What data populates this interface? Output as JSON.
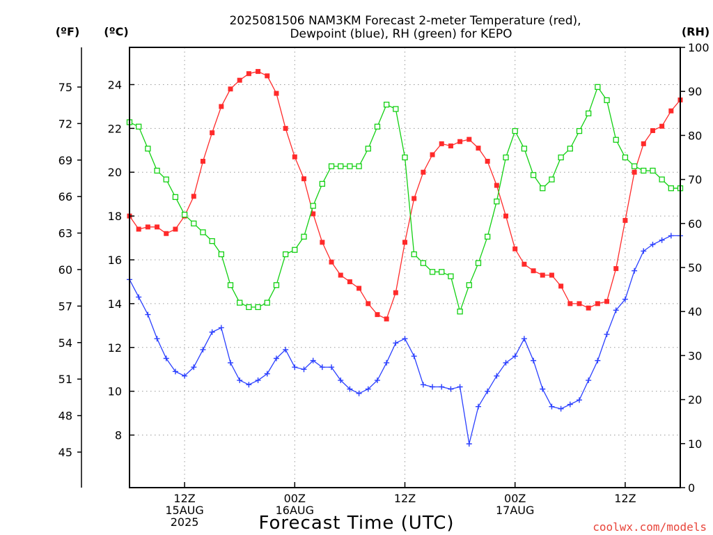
{
  "title": {
    "line1": "2025081506 NAM3KM Forecast 2-meter Temperature (red),",
    "line2": "Dewpoint (blue), RH (green) for KEPO"
  },
  "units": {
    "fahrenheit": "(ºF)",
    "celsius": "(ºC)",
    "rh": "(RH)"
  },
  "credit": "coolwx.com/models",
  "colors": {
    "temperature": "#ff2a2a",
    "dewpoint": "#2a3fff",
    "rh": "#12d012",
    "credit": "#e8443a"
  },
  "chart_data": {
    "type": "line",
    "xlabel": "Forecast Time (UTC)",
    "x_hours_from_run": [
      0,
      60
    ],
    "x_ticks": [
      {
        "hour": 6,
        "lines": [
          "12Z",
          "15AUG",
          "2025"
        ]
      },
      {
        "hour": 18,
        "lines": [
          "00Z",
          "16AUG"
        ]
      },
      {
        "hour": 30,
        "lines": [
          "12Z"
        ]
      },
      {
        "hour": 42,
        "lines": [
          "00Z",
          "17AUG"
        ]
      },
      {
        "hour": 54,
        "lines": [
          "12Z"
        ]
      }
    ],
    "y_celsius": {
      "range": [
        5.6,
        25.7
      ],
      "ticks": [
        "8",
        "10",
        "12",
        "14",
        "16",
        "18",
        "20",
        "22",
        "24"
      ]
    },
    "y_fahrenheit": {
      "ticks": [
        "45",
        "48",
        "51",
        "54",
        "57",
        "60",
        "63",
        "66",
        "69",
        "72",
        "75"
      ]
    },
    "y_rh": {
      "range": [
        0,
        100
      ],
      "ticks": [
        "0",
        "10",
        "20",
        "30",
        "40",
        "50",
        "60",
        "70",
        "80",
        "90",
        "100"
      ]
    },
    "grid": true,
    "series": [
      {
        "name": "Temperature",
        "axis": "celsius",
        "color": "#ff2a2a",
        "marker": "filled-square",
        "x": [
          0,
          1,
          2,
          3,
          4,
          5,
          6,
          7,
          8,
          9,
          10,
          11,
          12,
          13,
          14,
          15,
          16,
          17,
          18,
          19,
          20,
          21,
          22,
          23,
          24,
          25,
          26,
          27,
          28,
          29,
          30,
          31,
          32,
          33,
          34,
          35,
          36,
          37,
          38,
          39,
          40,
          41,
          42,
          43,
          44,
          45,
          46,
          47,
          48,
          49,
          50,
          51,
          52,
          53,
          54,
          55,
          56,
          57,
          58,
          59,
          60
        ],
        "values": [
          18.0,
          17.4,
          17.5,
          17.5,
          17.2,
          17.4,
          18.0,
          18.9,
          20.5,
          21.8,
          23.0,
          23.8,
          24.2,
          24.5,
          24.6,
          24.4,
          23.6,
          22.0,
          20.7,
          19.7,
          18.1,
          16.8,
          15.9,
          15.3,
          15.0,
          14.7,
          14.0,
          13.5,
          13.3,
          14.5,
          16.8,
          18.8,
          20.0,
          20.8,
          21.3,
          21.2,
          21.4,
          21.5,
          21.1,
          20.5,
          19.4,
          18.0,
          16.5,
          15.8,
          15.5,
          15.3,
          15.3,
          14.8,
          14.0,
          14.0,
          13.8,
          14.0,
          14.1,
          15.6,
          17.8,
          20.0,
          21.3,
          21.9,
          22.1,
          22.8,
          23.3
        ]
      },
      {
        "name": "Dewpoint",
        "axis": "celsius",
        "color": "#2a3fff",
        "marker": "plus",
        "x": [
          0,
          1,
          2,
          3,
          4,
          5,
          6,
          7,
          8,
          9,
          10,
          11,
          12,
          13,
          14,
          15,
          16,
          17,
          18,
          19,
          20,
          21,
          22,
          23,
          24,
          25,
          26,
          27,
          28,
          29,
          30,
          31,
          32,
          33,
          34,
          35,
          36,
          37,
          38,
          39,
          40,
          41,
          42,
          43,
          44,
          45,
          46,
          47,
          48,
          49,
          50,
          51,
          52,
          53,
          54,
          55,
          56,
          57,
          58,
          59,
          60
        ],
        "values": [
          15.1,
          14.3,
          13.5,
          12.4,
          11.5,
          10.9,
          10.7,
          11.1,
          11.9,
          12.7,
          12.9,
          11.3,
          10.5,
          10.3,
          10.5,
          10.8,
          11.5,
          11.9,
          11.1,
          11.0,
          11.4,
          11.1,
          11.1,
          10.5,
          10.1,
          9.9,
          10.1,
          10.5,
          11.3,
          12.2,
          12.4,
          11.6,
          10.3,
          10.2,
          10.2,
          10.1,
          10.2,
          7.6,
          9.3,
          10.0,
          10.7,
          11.3,
          11.6,
          12.4,
          11.4,
          10.1,
          9.3,
          9.2,
          9.4,
          9.6,
          10.5,
          11.4,
          12.6,
          13.7,
          14.2,
          15.5,
          16.4,
          16.7,
          16.9,
          17.1,
          17.1
        ]
      },
      {
        "name": "RH",
        "axis": "rh",
        "color": "#12d012",
        "marker": "open-square",
        "x": [
          0,
          1,
          2,
          3,
          4,
          5,
          6,
          7,
          8,
          9,
          10,
          11,
          12,
          13,
          14,
          15,
          16,
          17,
          18,
          19,
          20,
          21,
          22,
          23,
          24,
          25,
          26,
          27,
          28,
          29,
          30,
          31,
          32,
          33,
          34,
          35,
          36,
          37,
          38,
          39,
          40,
          41,
          42,
          43,
          44,
          45,
          46,
          47,
          48,
          49,
          50,
          51,
          52,
          53,
          54,
          55,
          56,
          57,
          58,
          59,
          60
        ],
        "values": [
          83,
          82,
          77,
          72,
          70,
          66,
          62,
          60,
          58,
          56,
          53,
          46,
          42,
          41,
          41,
          42,
          46,
          53,
          54,
          57,
          64,
          69,
          73,
          73,
          73,
          73,
          77,
          82,
          87,
          86,
          75,
          53,
          51,
          49,
          49,
          48,
          40,
          46,
          51,
          57,
          65,
          75,
          81,
          77,
          71,
          68,
          70,
          75,
          77,
          81,
          85,
          91,
          88,
          79,
          75,
          73,
          72,
          72,
          70,
          68,
          68
        ]
      }
    ]
  }
}
